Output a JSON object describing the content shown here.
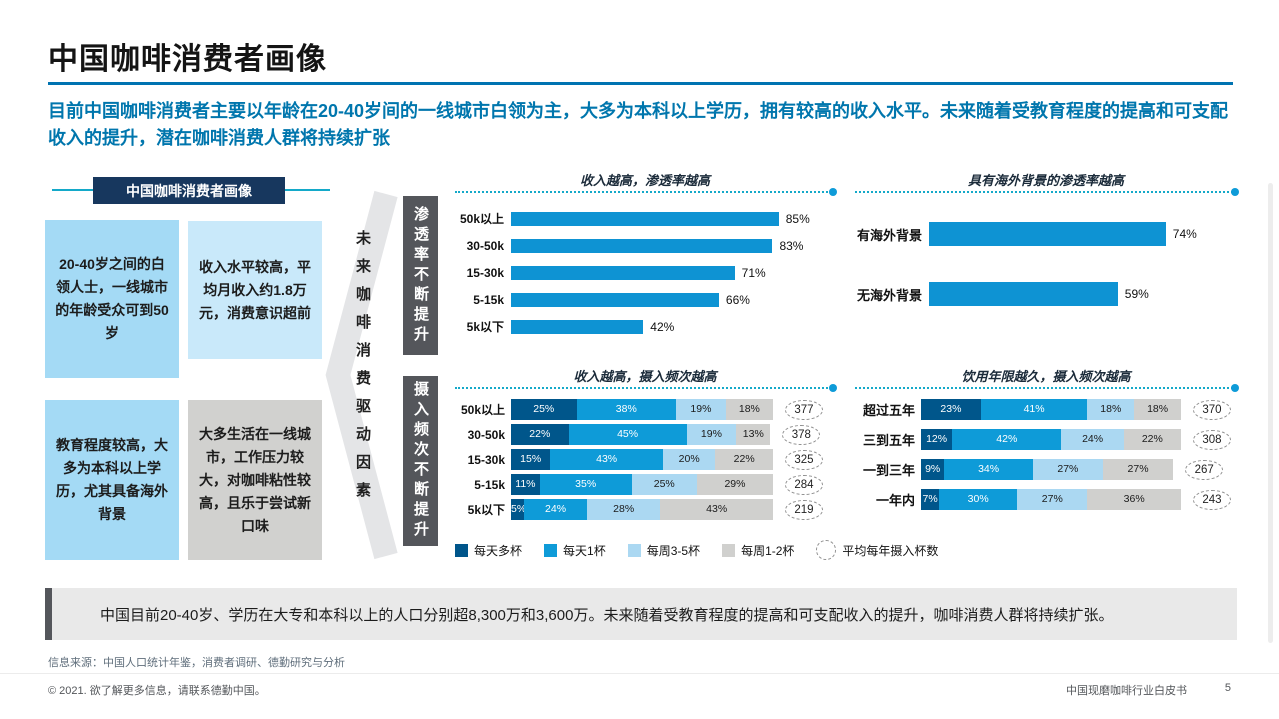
{
  "page": {
    "title": "中国咖啡消费者画像",
    "intro": "目前中国咖啡消费者主要以年龄在20-40岁间的一线城市白领为主，大多为本科以上学历，拥有较高的收入水平。未来随着受教育程度的提高和可支配收入的提升，潜在咖啡消费人群将持续扩张"
  },
  "left_panel": {
    "header": "中国咖啡消费者画像",
    "boxes": [
      {
        "text": "20-40岁之间的白领人士，一线城市的年龄受众可到50岁"
      },
      {
        "text": "收入水平较高，平均月收入约1.8万元，消费意识超前"
      },
      {
        "text": "教育程度较高，大多为本科以上学历，尤其具备海外背景"
      },
      {
        "text": "大多生活在一线城市，工作压力较大，对咖啡粘性较高，且乐于尝试新口味"
      }
    ],
    "driver_label": "未来咖啡消费驱动因素"
  },
  "sections": [
    "渗透率不断提升",
    "摄入频次不断提升"
  ],
  "chart_data": [
    {
      "type": "bar",
      "title": "收入越高，渗透率越高",
      "categories": [
        "50k以上",
        "30-50k",
        "15-30k",
        "5-15k",
        "5k以下"
      ],
      "values": [
        85,
        83,
        71,
        66,
        42
      ],
      "unit": "%",
      "xlim": [
        0,
        100
      ]
    },
    {
      "type": "bar",
      "title": "具有海外背景的渗透率越高",
      "categories": [
        "有海外背景",
        "无海外背景"
      ],
      "values": [
        74,
        59
      ],
      "unit": "%",
      "xlim": [
        0,
        100
      ]
    },
    {
      "type": "stacked-bar",
      "title": "收入越高，摄入频次越高",
      "categories": [
        "50k以上",
        "30-50k",
        "15-30k",
        "5-15k",
        "5k以下"
      ],
      "series": [
        {
          "name": "每天多杯",
          "values": [
            25,
            22,
            15,
            11,
            5
          ]
        },
        {
          "name": "每天1杯",
          "values": [
            38,
            45,
            43,
            35,
            24
          ]
        },
        {
          "name": "每周3-5杯",
          "values": [
            19,
            19,
            20,
            25,
            28
          ]
        },
        {
          "name": "每周1-2杯",
          "values": [
            18,
            13,
            22,
            29,
            43
          ]
        }
      ],
      "annual_cups": [
        377,
        378,
        325,
        284,
        219
      ],
      "unit": "%"
    },
    {
      "type": "stacked-bar",
      "title": "饮用年限越久，摄入频次越高",
      "categories": [
        "超过五年",
        "三到五年",
        "一到三年",
        "一年内"
      ],
      "series": [
        {
          "name": "每天多杯",
          "values": [
            23,
            12,
            9,
            7
          ]
        },
        {
          "name": "每天1杯",
          "values": [
            41,
            42,
            34,
            30
          ]
        },
        {
          "name": "每周3-5杯",
          "values": [
            18,
            24,
            27,
            27
          ]
        },
        {
          "name": "每周1-2杯",
          "values": [
            18,
            22,
            27,
            36
          ]
        }
      ],
      "annual_cups": [
        370,
        308,
        267,
        243
      ],
      "unit": "%"
    }
  ],
  "legend": {
    "items": [
      {
        "label": "每天多杯",
        "color": "#00568b"
      },
      {
        "label": "每天1杯",
        "color": "#0e9bd8"
      },
      {
        "label": "每周3-5杯",
        "color": "#abd8f2"
      },
      {
        "label": "每周1-2杯",
        "color": "#d0d0ce"
      }
    ],
    "circle_label": "平均每年摄入杯数"
  },
  "callout": "中国目前20-40岁、学历在大专和本科以上的人口分别超8,300万和3,600万。未来随着受教育程度的提高和可支配收入的提升，咖啡消费人群将持续扩张。",
  "footer": {
    "source": "信息来源：中国人口统计年鉴，消费者调研、德勤研究与分析",
    "copyright": "© 2021. 欲了解更多信息，请联系德勤中国。",
    "doc_title": "中国现磨咖啡行业白皮书",
    "page_number": "5"
  },
  "colors": {
    "accent_blue": "#0073b1",
    "intro_blue": "#0076ad",
    "navy_header": "#17375e",
    "box_blue": "#a4daf5",
    "box_blue_light": "#c9e9fa",
    "box_gray": "#d1d1cf",
    "section_label_gray": "#54565b",
    "bar_blue": "#0e93d3",
    "dotted_teal": "#14a9c9",
    "dot_blue": "#0e9bd8"
  }
}
